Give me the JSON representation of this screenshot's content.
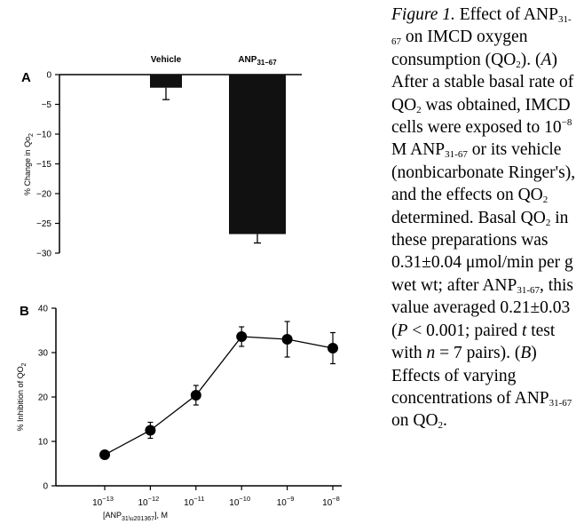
{
  "chart_data": [
    {
      "panel": "A",
      "type": "bar",
      "categories": [
        "Vehicle",
        "ANP31–67"
      ],
      "values": [
        -2.2,
        -26.8
      ],
      "errors": [
        2.0,
        1.5
      ],
      "ylabel": "% Change in Qo2",
      "ylim": [
        -30,
        0
      ],
      "yticks": [
        0,
        -5,
        -10,
        -15,
        -20,
        -25,
        -30
      ],
      "colors": [
        "#111111",
        "#111111"
      ]
    },
    {
      "panel": "B",
      "type": "line",
      "xlabel": "[ANP31–67], M",
      "ylabel": "% Inhibition of QO2",
      "x": [
        -13,
        -12,
        -11,
        -10,
        -9,
        -8
      ],
      "xtick_labels": [
        "10−13",
        "10−12",
        "10−11",
        "10−10",
        "10−9",
        "10−8"
      ],
      "y": [
        7.0,
        12.5,
        20.4,
        33.6,
        33.0,
        31.0
      ],
      "errors": [
        0.0,
        1.8,
        2.2,
        2.2,
        4.0,
        3.5
      ],
      "ylim": [
        0,
        40
      ],
      "yticks": [
        0,
        10,
        20,
        30,
        40
      ]
    }
  ],
  "caption": {
    "label": "Figure 1.",
    "intro": "Effect of ANP",
    "intro_sub": "31-67",
    "intro_rest": "on IMCD oxygen consumption (QO",
    "intro_qo_sub": "2",
    "intro_end": ").",
    "part_a_letter": "A",
    "part_a_text_1": "After a stable basal rate of QO",
    "part_a_text_2": "was obtained, IMCD cells were exposed to 10",
    "part_a_sup": "−8",
    "part_a_text_3": "M ANP",
    "part_a_text_4": "or its vehicle (nonbicarbonate Ringer's), and the effects on QO",
    "part_a_text_5": "determined. Basal QO",
    "part_a_text_6": "in these preparations was 0.31±0.04 μmol/min per g wet wt; after ANP",
    "part_a_text_7": ", this value averaged 0.21±0.03 (",
    "p_letter": "P",
    "part_a_text_8": "< 0.001; paired",
    "t_letter": "t",
    "part_a_text_9": "test with",
    "n_letter": "n",
    "part_a_text_10": "= 7 pairs).",
    "part_b_letter": "B",
    "part_b_text_1": "Effects of varying concentrations of ANP",
    "part_b_text_2": "on QO",
    "part_b_text_3": "."
  }
}
